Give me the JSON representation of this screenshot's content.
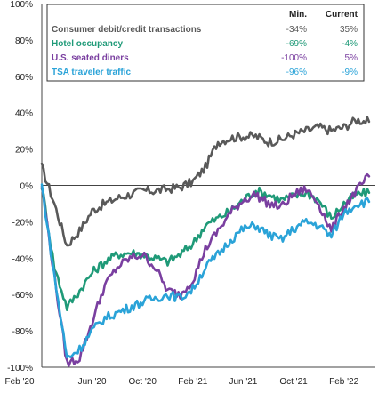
{
  "chart_data": {
    "type": "line",
    "ylim": [
      -100,
      100
    ],
    "yticks": [
      -100,
      -80,
      -60,
      -40,
      -20,
      0,
      20,
      40,
      60,
      80,
      100
    ],
    "ytick_labels": [
      "-100%",
      "-80%",
      "-60%",
      "-40%",
      "-20%",
      "0%",
      "20%",
      "40%",
      "60%",
      "80%",
      "100%"
    ],
    "xticks": [
      "Feb '20",
      "Jun '20",
      "Oct '20",
      "Feb '21",
      "Jun '21",
      "Oct '21",
      "Feb '22"
    ],
    "grid": false,
    "legend": {
      "placement": "top-right",
      "header_min": "Min.",
      "header_current": "Current"
    },
    "series": [
      {
        "name": "Consumer debit/credit transactions",
        "color": "#595959",
        "min_label": "-34%",
        "current_label": "35%",
        "x": [
          "2020-02",
          "2020-03",
          "2020-04",
          "2020-05",
          "2020-06",
          "2020-07",
          "2020-08",
          "2020-09",
          "2020-10",
          "2020-11",
          "2020-12",
          "2021-01",
          "2021-02",
          "2021-03",
          "2021-04",
          "2021-05",
          "2021-06",
          "2021-07",
          "2021-08",
          "2021-09",
          "2021-10",
          "2021-11",
          "2021-12",
          "2022-01",
          "2022-02",
          "2022-03",
          "2022-04"
        ],
        "values": [
          10,
          -10,
          -33,
          -25,
          -14,
          -10,
          -7,
          -5,
          -3,
          -3,
          -2,
          -1,
          2,
          10,
          24,
          26,
          27,
          27,
          24,
          25,
          28,
          30,
          32,
          30,
          32,
          36,
          35
        ]
      },
      {
        "name": "Hotel occupancy",
        "color": "#1f9a78",
        "min_label": "-69%",
        "current_label": "-4%",
        "x": [
          "2020-02",
          "2020-03",
          "2020-04",
          "2020-05",
          "2020-06",
          "2020-07",
          "2020-08",
          "2020-09",
          "2020-10",
          "2020-11",
          "2020-12",
          "2021-01",
          "2021-02",
          "2021-03",
          "2021-04",
          "2021-05",
          "2021-06",
          "2021-07",
          "2021-08",
          "2021-09",
          "2021-10",
          "2021-11",
          "2021-12",
          "2022-01",
          "2022-02",
          "2022-03",
          "2022-04"
        ],
        "values": [
          0,
          -45,
          -67,
          -58,
          -48,
          -42,
          -38,
          -37,
          -38,
          -40,
          -42,
          -38,
          -32,
          -22,
          -18,
          -14,
          -8,
          -3,
          -5,
          -8,
          -6,
          -4,
          -8,
          -18,
          -10,
          -5,
          -4
        ]
      },
      {
        "name": "U.S. seated diners",
        "color": "#7a3fa0",
        "min_label": "-100%",
        "current_label": "5%",
        "x": [
          "2020-02",
          "2020-03",
          "2020-04",
          "2020-05",
          "2020-06",
          "2020-07",
          "2020-08",
          "2020-09",
          "2020-10",
          "2020-11",
          "2020-12",
          "2021-01",
          "2021-02",
          "2021-03",
          "2021-04",
          "2021-05",
          "2021-06",
          "2021-07",
          "2021-08",
          "2021-09",
          "2021-10",
          "2021-11",
          "2021-12",
          "2022-01",
          "2022-02",
          "2022-03",
          "2022-04"
        ],
        "values": [
          0,
          -50,
          -98,
          -95,
          -75,
          -55,
          -45,
          -40,
          -38,
          -45,
          -58,
          -60,
          -52,
          -35,
          -25,
          -15,
          -8,
          -5,
          -10,
          -12,
          -5,
          -2,
          -10,
          -25,
          -12,
          -3,
          5
        ]
      },
      {
        "name": "TSA traveler traffic",
        "color": "#2aa3d8",
        "min_label": "-96%",
        "current_label": "-9%",
        "x": [
          "2020-02",
          "2020-03",
          "2020-04",
          "2020-05",
          "2020-06",
          "2020-07",
          "2020-08",
          "2020-09",
          "2020-10",
          "2020-11",
          "2020-12",
          "2021-01",
          "2021-02",
          "2021-03",
          "2021-04",
          "2021-05",
          "2021-06",
          "2021-07",
          "2021-08",
          "2021-09",
          "2021-10",
          "2021-11",
          "2021-12",
          "2022-01",
          "2022-02",
          "2022-03",
          "2022-04"
        ],
        "values": [
          0,
          -50,
          -95,
          -90,
          -80,
          -73,
          -70,
          -67,
          -64,
          -62,
          -60,
          -62,
          -57,
          -45,
          -38,
          -30,
          -24,
          -22,
          -27,
          -30,
          -24,
          -20,
          -22,
          -28,
          -15,
          -10,
          -9
        ]
      }
    ]
  }
}
